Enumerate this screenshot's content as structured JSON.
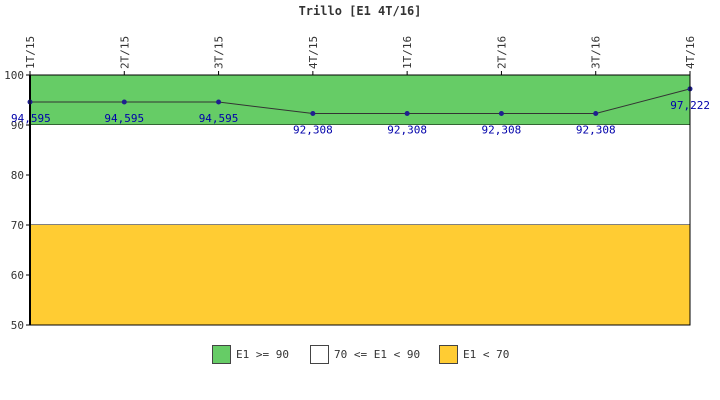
{
  "chart_data": {
    "type": "line",
    "title": "Trillo [E1 4T/16]",
    "categories": [
      "1T/15",
      "2T/15",
      "3T/15",
      "4T/15",
      "1T/16",
      "2T/16",
      "3T/16",
      "4T/16"
    ],
    "series": [
      {
        "values": [
          94.595,
          94.595,
          94.595,
          92.308,
          92.308,
          92.308,
          92.308,
          97.222
        ],
        "value_labels": [
          "94,595",
          "94,595",
          "94,595",
          "92,308",
          "92,308",
          "92,308",
          "92,308",
          "97,222"
        ],
        "color": "#1f1f8f"
      }
    ],
    "ylim": [
      50,
      100
    ],
    "yticks": [
      50,
      60,
      70,
      80,
      90,
      100
    ],
    "xlabel": "",
    "ylabel": "",
    "grid": false,
    "bands": [
      {
        "from": 90,
        "to": 100,
        "color": "#66cc66",
        "label": "E1 >= 90"
      },
      {
        "from": 70,
        "to": 90,
        "color": "#ffffff",
        "label": "70 <= E1 < 90"
      },
      {
        "from": 50,
        "to": 70,
        "color": "#ffcc33",
        "label": "E1 < 70"
      }
    ],
    "legend_position": "bottom-center"
  }
}
